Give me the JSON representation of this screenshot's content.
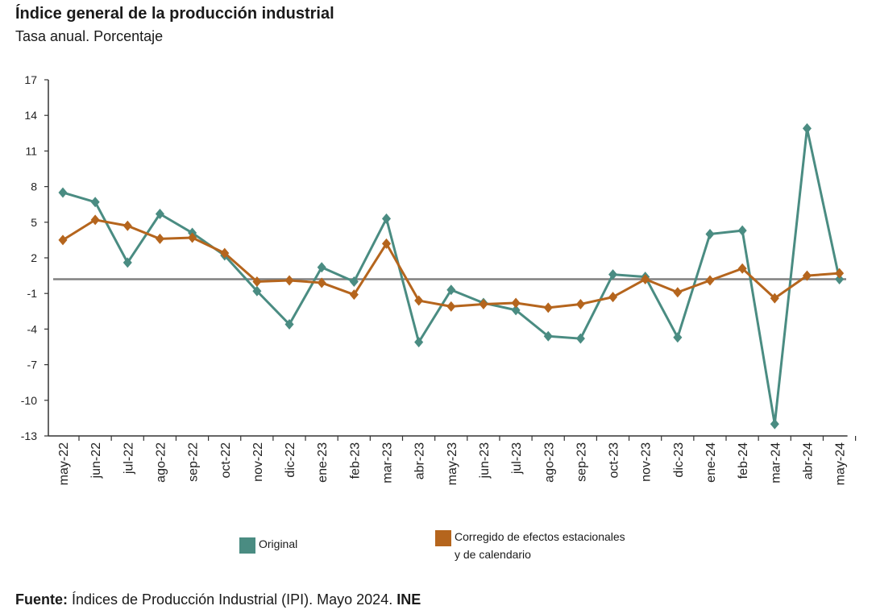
{
  "title": "Índice general de la producción industrial",
  "subtitle": "Tasa anual. Porcentaje",
  "colors": {
    "original": "#4a8c82",
    "corrected": "#b5651d",
    "baseline": "#808080",
    "axis": "#333333"
  },
  "legend": {
    "original_label": "Original",
    "corrected_label": "Corregido de efectos estacionales y de calendario"
  },
  "source": {
    "prefix": "Fuente:",
    "text": " Índices de Producción Industrial (IPI). Mayo 2024.",
    "org": " INE"
  },
  "chart_data": {
    "type": "line",
    "title": "Índice general de la producción industrial",
    "subtitle": "Tasa anual. Porcentaje",
    "xlabel": "",
    "ylabel": "",
    "ylim": [
      -13,
      17
    ],
    "yticks": [
      "17",
      "14",
      "11",
      "8",
      "5",
      "2",
      "-1",
      "-4",
      "-7",
      "-10",
      "-13"
    ],
    "categories": [
      "may-22",
      "jun-22",
      "jul-22",
      "ago-22",
      "sep-22",
      "oct-22",
      "nov-22",
      "dic-22",
      "ene-23",
      "feb-23",
      "mar-23",
      "abr-23",
      "may-23",
      "jun-23",
      "jul-23",
      "ago-23",
      "sep-23",
      "oct-23",
      "nov-23",
      "dic-23",
      "ene-24",
      "feb-24",
      "mar-24",
      "abr-24",
      "may-24"
    ],
    "series": [
      {
        "name": "Original",
        "values": [
          7.5,
          6.7,
          1.6,
          5.7,
          4.1,
          2.2,
          -0.8,
          -3.6,
          1.2,
          0.0,
          5.3,
          -5.1,
          -0.7,
          -1.8,
          -2.4,
          -4.6,
          -4.8,
          0.6,
          0.4,
          -4.7,
          4.0,
          4.3,
          -12.0,
          12.9,
          0.2
        ]
      },
      {
        "name": "Corregido de efectos estacionales y de calendario",
        "values": [
          3.5,
          5.2,
          4.7,
          3.6,
          3.7,
          2.4,
          0.0,
          0.1,
          -0.1,
          -1.1,
          3.2,
          -1.6,
          -2.1,
          -1.9,
          -1.8,
          -2.2,
          -1.9,
          -1.3,
          0.2,
          -0.9,
          0.1,
          1.1,
          -1.4,
          0.5,
          0.7
        ]
      }
    ],
    "baseline": 0.2,
    "legend_position": "bottom"
  }
}
